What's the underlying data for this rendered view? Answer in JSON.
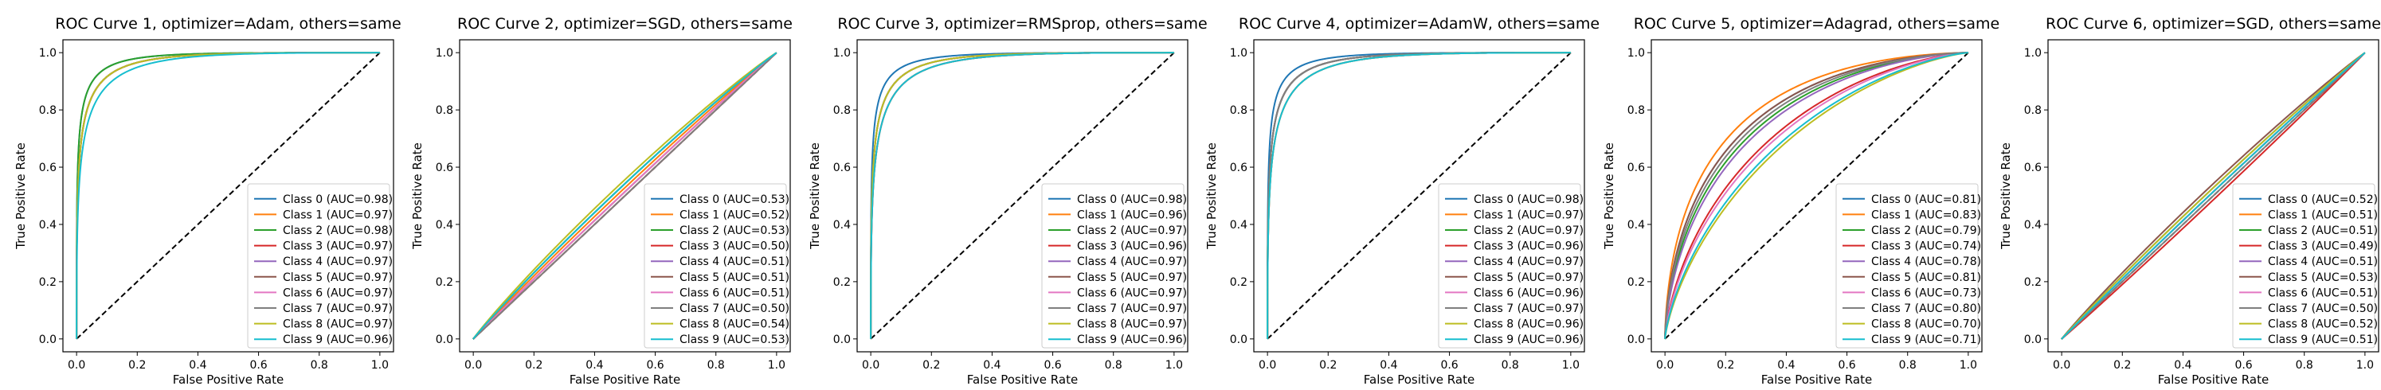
{
  "figure": {
    "background": "#ffffff"
  },
  "colors": {
    "class_palette": [
      "#1f77b4",
      "#ff7f0e",
      "#2ca02c",
      "#d62728",
      "#9467bd",
      "#8c564b",
      "#e377c2",
      "#7f7f7f",
      "#bcbd22",
      "#17becf"
    ],
    "diagonal": "#000000"
  },
  "chart_data": [
    {
      "type": "line",
      "title": "ROC Curve 1, optimizer=Adam, others=same",
      "xlabel": "False Positive Rate",
      "ylabel": "True Positive Rate",
      "xlim": [
        0.0,
        1.0
      ],
      "ylim": [
        0.0,
        1.0
      ],
      "xticks": [
        "0.0",
        "0.2",
        "0.4",
        "0.6",
        "0.8",
        "1.0"
      ],
      "yticks": [
        "0.0",
        "0.2",
        "0.4",
        "0.6",
        "0.8",
        "1.0"
      ],
      "grid": false,
      "legend_position": "lower right",
      "diagonal": "dashed",
      "series": [
        {
          "name": "Class 0 (AUC=0.98)",
          "auc": 0.98
        },
        {
          "name": "Class 1 (AUC=0.97)",
          "auc": 0.97
        },
        {
          "name": "Class 2 (AUC=0.98)",
          "auc": 0.98
        },
        {
          "name": "Class 3 (AUC=0.97)",
          "auc": 0.97
        },
        {
          "name": "Class 4 (AUC=0.97)",
          "auc": 0.97
        },
        {
          "name": "Class 5 (AUC=0.97)",
          "auc": 0.97
        },
        {
          "name": "Class 6 (AUC=0.97)",
          "auc": 0.97
        },
        {
          "name": "Class 7 (AUC=0.97)",
          "auc": 0.97
        },
        {
          "name": "Class 8 (AUC=0.97)",
          "auc": 0.97
        },
        {
          "name": "Class 9 (AUC=0.96)",
          "auc": 0.96
        }
      ]
    },
    {
      "type": "line",
      "title": "ROC Curve 2, optimizer=SGD, others=same",
      "xlabel": "False Positive Rate",
      "ylabel": "True Positive Rate",
      "xlim": [
        0.0,
        1.0
      ],
      "ylim": [
        0.0,
        1.0
      ],
      "xticks": [
        "0.0",
        "0.2",
        "0.4",
        "0.6",
        "0.8",
        "1.0"
      ],
      "yticks": [
        "0.0",
        "0.2",
        "0.4",
        "0.6",
        "0.8",
        "1.0"
      ],
      "grid": false,
      "legend_position": "lower right",
      "diagonal": "dashed",
      "series": [
        {
          "name": "Class 0 (AUC=0.53)",
          "auc": 0.53
        },
        {
          "name": "Class 1 (AUC=0.52)",
          "auc": 0.52
        },
        {
          "name": "Class 2 (AUC=0.53)",
          "auc": 0.53
        },
        {
          "name": "Class 3 (AUC=0.50)",
          "auc": 0.5
        },
        {
          "name": "Class 4 (AUC=0.51)",
          "auc": 0.51
        },
        {
          "name": "Class 5 (AUC=0.51)",
          "auc": 0.51
        },
        {
          "name": "Class 6 (AUC=0.51)",
          "auc": 0.51
        },
        {
          "name": "Class 7 (AUC=0.50)",
          "auc": 0.5
        },
        {
          "name": "Class 8 (AUC=0.54)",
          "auc": 0.54
        },
        {
          "name": "Class 9 (AUC=0.53)",
          "auc": 0.53
        }
      ]
    },
    {
      "type": "line",
      "title": "ROC Curve 3, optimizer=RMSprop, others=same",
      "xlabel": "False Positive Rate",
      "ylabel": "True Positive Rate",
      "xlim": [
        0.0,
        1.0
      ],
      "ylim": [
        0.0,
        1.0
      ],
      "xticks": [
        "0.0",
        "0.2",
        "0.4",
        "0.6",
        "0.8",
        "1.0"
      ],
      "yticks": [
        "0.0",
        "0.2",
        "0.4",
        "0.6",
        "0.8",
        "1.0"
      ],
      "grid": false,
      "legend_position": "lower right",
      "diagonal": "dashed",
      "series": [
        {
          "name": "Class 0 (AUC=0.98)",
          "auc": 0.98
        },
        {
          "name": "Class 1 (AUC=0.96)",
          "auc": 0.96
        },
        {
          "name": "Class 2 (AUC=0.97)",
          "auc": 0.97
        },
        {
          "name": "Class 3 (AUC=0.96)",
          "auc": 0.96
        },
        {
          "name": "Class 4 (AUC=0.97)",
          "auc": 0.97
        },
        {
          "name": "Class 5 (AUC=0.97)",
          "auc": 0.97
        },
        {
          "name": "Class 6 (AUC=0.97)",
          "auc": 0.97
        },
        {
          "name": "Class 7 (AUC=0.97)",
          "auc": 0.97
        },
        {
          "name": "Class 8 (AUC=0.97)",
          "auc": 0.97
        },
        {
          "name": "Class 9 (AUC=0.96)",
          "auc": 0.96
        }
      ]
    },
    {
      "type": "line",
      "title": "ROC Curve 4, optimizer=AdamW, others=same",
      "xlabel": "False Positive Rate",
      "ylabel": "True Positive Rate",
      "xlim": [
        0.0,
        1.0
      ],
      "ylim": [
        0.0,
        1.0
      ],
      "xticks": [
        "0.0",
        "0.2",
        "0.4",
        "0.6",
        "0.8",
        "1.0"
      ],
      "yticks": [
        "0.0",
        "0.2",
        "0.4",
        "0.6",
        "0.8",
        "1.0"
      ],
      "grid": false,
      "legend_position": "lower right",
      "diagonal": "dashed",
      "series": [
        {
          "name": "Class 0 (AUC=0.98)",
          "auc": 0.98
        },
        {
          "name": "Class 1 (AUC=0.97)",
          "auc": 0.97
        },
        {
          "name": "Class 2 (AUC=0.97)",
          "auc": 0.97
        },
        {
          "name": "Class 3 (AUC=0.96)",
          "auc": 0.96
        },
        {
          "name": "Class 4 (AUC=0.97)",
          "auc": 0.97
        },
        {
          "name": "Class 5 (AUC=0.97)",
          "auc": 0.97
        },
        {
          "name": "Class 6 (AUC=0.96)",
          "auc": 0.96
        },
        {
          "name": "Class 7 (AUC=0.97)",
          "auc": 0.97
        },
        {
          "name": "Class 8 (AUC=0.96)",
          "auc": 0.96
        },
        {
          "name": "Class 9 (AUC=0.96)",
          "auc": 0.96
        }
      ]
    },
    {
      "type": "line",
      "title": "ROC Curve 5, optimizer=Adagrad, others=same",
      "xlabel": "False Positive Rate",
      "ylabel": "True Positive Rate",
      "xlim": [
        0.0,
        1.0
      ],
      "ylim": [
        0.0,
        1.0
      ],
      "xticks": [
        "0.0",
        "0.2",
        "0.4",
        "0.6",
        "0.8",
        "1.0"
      ],
      "yticks": [
        "0.0",
        "0.2",
        "0.4",
        "0.6",
        "0.8",
        "1.0"
      ],
      "grid": false,
      "legend_position": "lower right",
      "diagonal": "dashed",
      "series": [
        {
          "name": "Class 0 (AUC=0.81)",
          "auc": 0.81
        },
        {
          "name": "Class 1 (AUC=0.83)",
          "auc": 0.83
        },
        {
          "name": "Class 2 (AUC=0.79)",
          "auc": 0.79
        },
        {
          "name": "Class 3 (AUC=0.74)",
          "auc": 0.74
        },
        {
          "name": "Class 4 (AUC=0.78)",
          "auc": 0.78
        },
        {
          "name": "Class 5 (AUC=0.81)",
          "auc": 0.81
        },
        {
          "name": "Class 6 (AUC=0.73)",
          "auc": 0.73
        },
        {
          "name": "Class 7 (AUC=0.80)",
          "auc": 0.8
        },
        {
          "name": "Class 8 (AUC=0.70)",
          "auc": 0.7
        },
        {
          "name": "Class 9 (AUC=0.71)",
          "auc": 0.71
        }
      ]
    },
    {
      "type": "line",
      "title": "ROC Curve 6, optimizer=SGD, others=same",
      "xlabel": "False Positive Rate",
      "ylabel": "True Positive Rate",
      "xlim": [
        0.0,
        1.0
      ],
      "ylim": [
        0.0,
        1.0
      ],
      "xticks": [
        "0.0",
        "0.2",
        "0.4",
        "0.6",
        "0.8",
        "1.0"
      ],
      "yticks": [
        "0.0",
        "0.2",
        "0.4",
        "0.6",
        "0.8",
        "1.0"
      ],
      "grid": false,
      "legend_position": "lower right",
      "diagonal": "dashed",
      "series": [
        {
          "name": "Class 0 (AUC=0.52)",
          "auc": 0.52
        },
        {
          "name": "Class 1 (AUC=0.51)",
          "auc": 0.51
        },
        {
          "name": "Class 2 (AUC=0.51)",
          "auc": 0.51
        },
        {
          "name": "Class 3 (AUC=0.49)",
          "auc": 0.49
        },
        {
          "name": "Class 4 (AUC=0.51)",
          "auc": 0.51
        },
        {
          "name": "Class 5 (AUC=0.53)",
          "auc": 0.53
        },
        {
          "name": "Class 6 (AUC=0.51)",
          "auc": 0.51
        },
        {
          "name": "Class 7 (AUC=0.50)",
          "auc": 0.5
        },
        {
          "name": "Class 8 (AUC=0.52)",
          "auc": 0.52
        },
        {
          "name": "Class 9 (AUC=0.51)",
          "auc": 0.51
        }
      ]
    }
  ]
}
